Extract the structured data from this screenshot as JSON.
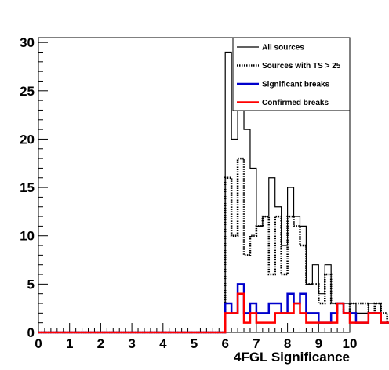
{
  "chart_data": {
    "type": "line",
    "xlabel": "4FGL Significance",
    "ylabel": "",
    "xlim": [
      0,
      10
    ],
    "ylim": [
      0,
      30.5
    ],
    "bin_width": 0.2,
    "xticks": [
      "0",
      "1",
      "2",
      "3",
      "4",
      "5",
      "6",
      "7",
      "8",
      "9",
      "10"
    ],
    "yticks": [
      "0",
      "5",
      "10",
      "15",
      "20",
      "25",
      "30"
    ],
    "legend": "top-right",
    "series": [
      {
        "name": "All sources",
        "color": "#000000",
        "style": "solid",
        "bin_start": 0,
        "values": [
          0,
          0,
          0,
          0,
          0,
          0,
          0,
          0,
          0,
          0,
          0,
          0,
          0,
          0,
          0,
          0,
          0,
          0,
          0,
          0,
          0,
          0,
          0,
          0,
          0,
          0,
          0,
          0,
          0,
          0,
          29,
          20,
          29,
          21,
          17,
          11,
          12,
          16,
          13,
          9,
          15,
          12,
          11,
          5,
          7,
          4,
          7,
          3,
          3,
          3,
          3,
          2,
          2,
          3,
          3,
          1,
          1,
          1,
          1,
          0,
          0,
          0,
          0,
          0,
          0,
          0,
          0,
          0,
          0,
          0
        ]
      },
      {
        "name": "Sources with TS > 25",
        "color": "#000000",
        "style": "dotted",
        "bin_start": 0,
        "values": [
          0,
          0,
          0,
          0,
          0,
          0,
          0,
          0,
          0,
          0,
          0,
          0,
          0,
          0,
          0,
          0,
          0,
          0,
          0,
          0,
          0,
          0,
          0,
          0,
          0,
          0,
          0,
          0,
          0,
          0,
          16,
          10,
          18,
          8,
          10,
          11,
          12,
          6,
          12,
          6,
          12,
          11,
          9,
          5,
          5,
          3,
          6,
          3,
          3,
          2,
          3,
          3,
          3,
          2,
          3,
          2,
          1,
          1,
          1,
          0,
          0,
          0,
          0,
          0,
          0,
          0,
          0,
          0,
          0,
          0
        ]
      },
      {
        "name": "Significant breaks",
        "color": "#0000cc",
        "style": "solid",
        "bin_start": 0,
        "values": [
          0,
          0,
          0,
          0,
          0,
          0,
          0,
          0,
          0,
          0,
          0,
          0,
          0,
          0,
          0,
          0,
          0,
          0,
          0,
          0,
          0,
          0,
          0,
          0,
          0,
          0,
          0,
          0,
          0,
          0,
          3,
          2,
          5,
          2,
          3,
          2,
          2,
          3,
          3,
          2,
          4,
          3,
          4,
          2,
          2,
          1,
          1,
          2,
          3,
          2,
          2,
          1,
          1,
          2,
          2,
          1,
          1,
          1,
          1,
          0,
          0,
          0,
          0,
          0,
          0,
          0,
          0,
          0,
          0,
          0
        ]
      },
      {
        "name": "Confirmed breaks",
        "color": "#ff0000",
        "style": "solid",
        "bin_start": 0,
        "values": [
          0,
          0,
          0,
          0,
          0,
          0,
          0,
          0,
          0,
          0,
          0,
          0,
          0,
          0,
          0,
          0,
          0,
          0,
          0,
          0,
          0,
          0,
          0,
          0,
          0,
          0,
          0,
          0,
          0,
          0,
          2,
          2,
          4,
          1,
          2,
          1,
          1,
          1,
          2,
          2,
          2,
          3,
          2,
          1,
          1,
          1,
          1,
          1,
          3,
          2,
          1,
          1,
          1,
          2,
          2,
          1,
          1,
          1,
          1,
          0,
          0,
          0,
          0,
          0,
          0,
          0,
          0,
          0,
          0,
          0
        ]
      }
    ]
  }
}
